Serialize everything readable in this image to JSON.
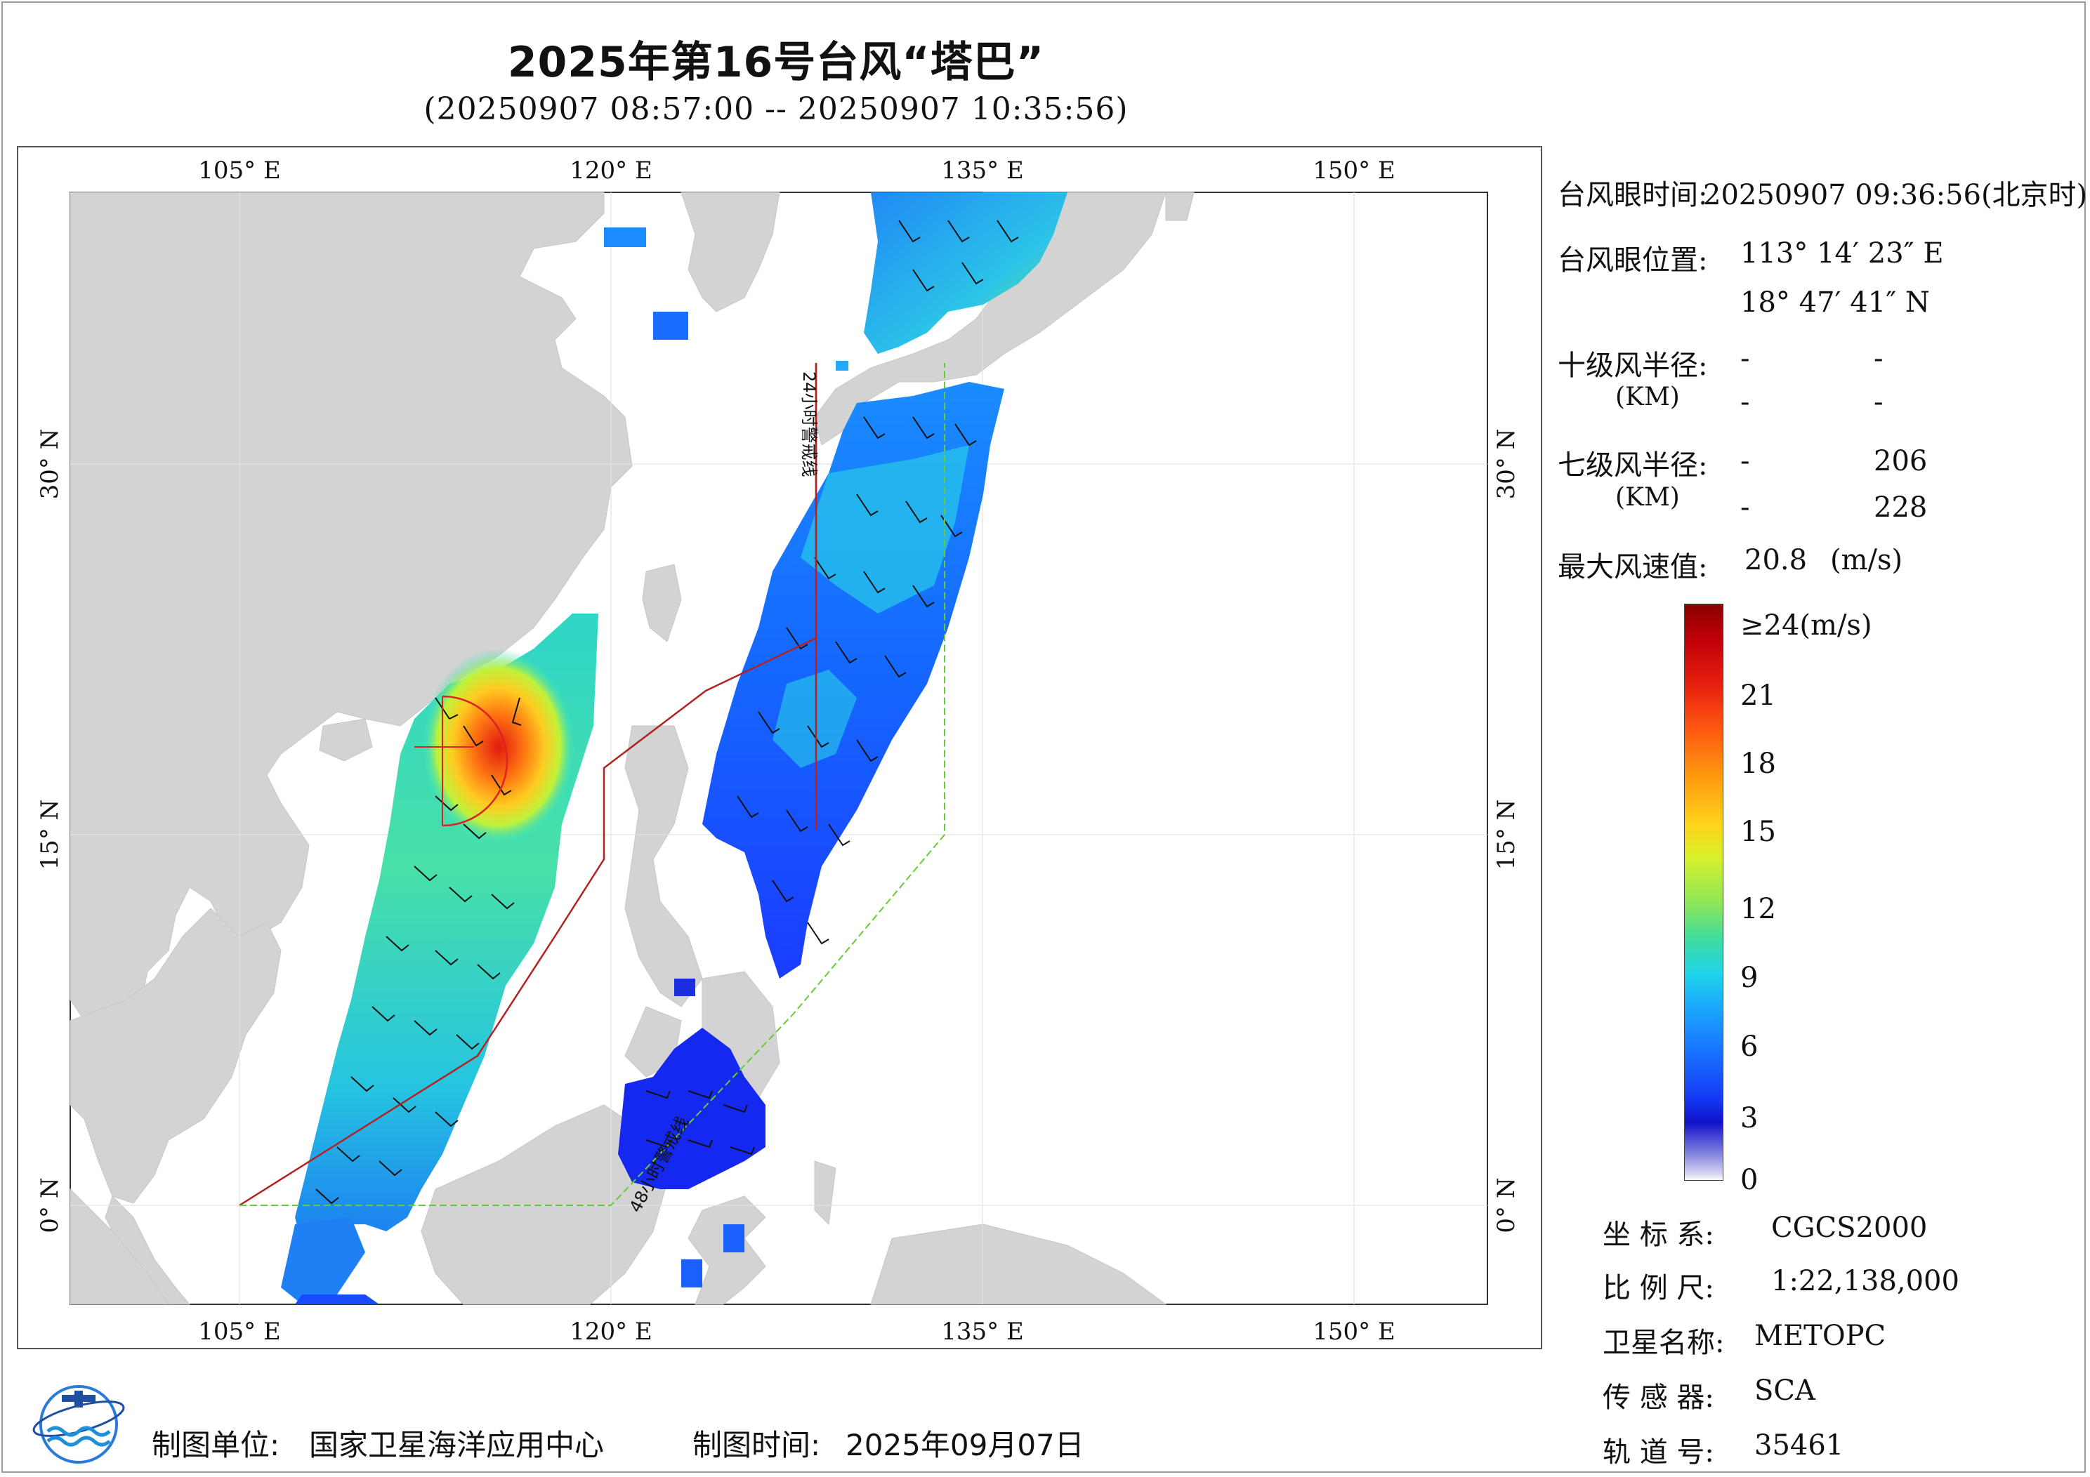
{
  "header": {
    "title": "2025年第16号台风“塔巴”",
    "subtitle": "(20250907 08:57:00 -- 20250907 10:35:56)"
  },
  "map": {
    "lon_ticks": [
      "105° E",
      "120° E",
      "135° E",
      "150° E"
    ],
    "lat_ticks": [
      "30° N",
      "15° N",
      "0° N"
    ],
    "warning_24h_label": "24小时警戒线",
    "warning_48h_label": "48小时警戒线",
    "colors": {
      "land": "#d3d3d3",
      "sea": "#ffffff",
      "warning_24h": "#b22222",
      "warning_48h": "#66cc33",
      "typhoon_circle": "#dd2222"
    }
  },
  "info": {
    "eye_time_label": "台风眼时间:",
    "eye_time_value": "20250907 09:36:56(北京时)",
    "eye_pos_label": "台风眼位置:",
    "eye_lon": "113° 14′ 23″ E",
    "eye_lat": "18° 47′ 41″ N",
    "r10_label": "十级风半径:",
    "r10_unit": "(KM)",
    "r10_values": [
      "-",
      "-",
      "-",
      "-"
    ],
    "r7_label": "七级风半径:",
    "r7_unit": "(KM)",
    "r7_row1": [
      "-",
      "206"
    ],
    "r7_row2": [
      "-",
      "228"
    ],
    "max_wind_label": "最大风速值:",
    "max_wind_value": "20.8",
    "max_wind_unit": "(m/s)"
  },
  "colorbar": {
    "labels": [
      "≥24(m/s)",
      "21",
      "18",
      "15",
      "12",
      "9",
      "6",
      "3",
      "0"
    ]
  },
  "meta": {
    "crs_label": "坐 标 系:",
    "crs_value": "CGCS2000",
    "scale_label": "比 例 尺:",
    "scale_value": "1:22,138,000",
    "satellite_label": "卫星名称:",
    "satellite_value": "METOPC",
    "sensor_label": "传 感 器:",
    "sensor_value": "SCA",
    "orbit_label": "轨 道 号:",
    "orbit_value": "35461"
  },
  "footer": {
    "org_label": "制图单位:",
    "org_value": "国家卫星海洋应用中心",
    "date_label": "制图时间:",
    "date_value": "2025年09月07日"
  }
}
